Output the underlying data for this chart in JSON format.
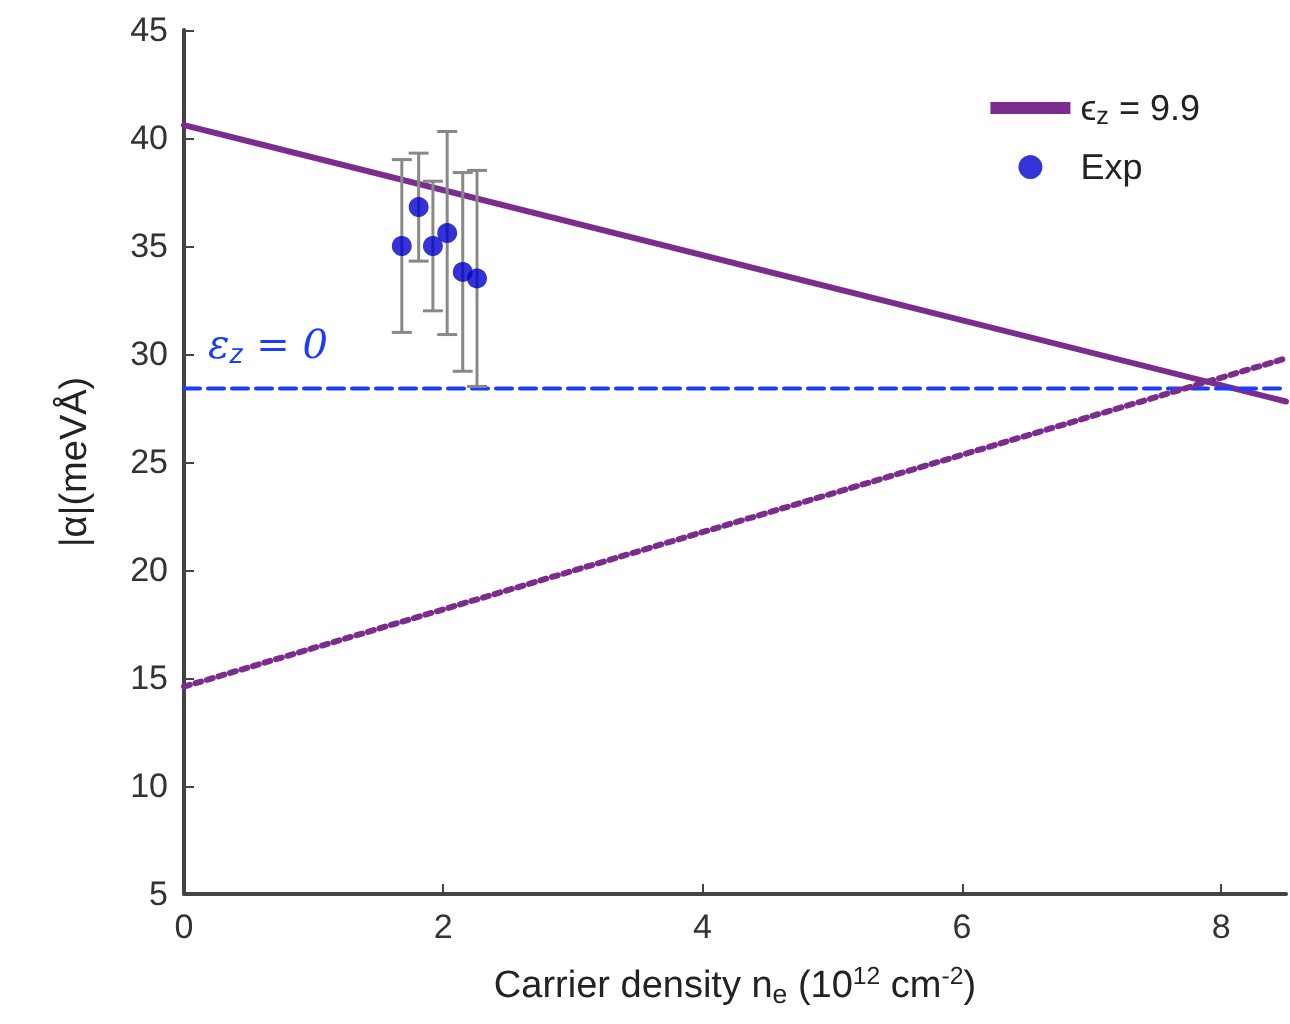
{
  "chart_data": {
    "type": "line",
    "xlabel": "Carrier density n$_{e}$ (10$^{12}$ cm$^{-2}$)",
    "ylabel": "|α|(meVÅ)",
    "xlim": [
      0,
      8.5
    ],
    "xticks": [
      0,
      2,
      4,
      6,
      8
    ],
    "ylim": [
      5,
      45
    ],
    "yticks": [
      5,
      10,
      15,
      20,
      25,
      30,
      35,
      40,
      45
    ],
    "grid": false,
    "legend": "top right",
    "series": [
      {
        "name": "ϵ$_{z}$ = 9.9",
        "color": "#7b2d8e",
        "line_style": "solid",
        "marker": "none",
        "x": [
          0,
          8.5
        ],
        "values": [
          40.6,
          27.8
        ]
      },
      {
        "name": "𝜀$_{z}$ = 0",
        "color": "#1a3cff",
        "line_style": "dashed",
        "marker": "none",
        "x": [
          0,
          8.5
        ],
        "values": [
          28.4,
          28.4
        ]
      },
      {
        "color": "#7b2d8e",
        "line_style": "dotted",
        "marker": "none",
        "x": [
          0,
          8.5
        ],
        "values": [
          14.6,
          29.8
        ]
      },
      {
        "name": "Exp",
        "type": "scatter",
        "color": "#0000cc",
        "marker": "circle",
        "x": [
          1.68,
          1.81,
          1.92,
          2.03,
          2.15,
          2.26
        ],
        "values": [
          35.0,
          36.8,
          35.0,
          35.6,
          33.8,
          33.5
        ],
        "errors": [
          4,
          2.5,
          3,
          4.7,
          4.6,
          5
        ]
      }
    ]
  }
}
